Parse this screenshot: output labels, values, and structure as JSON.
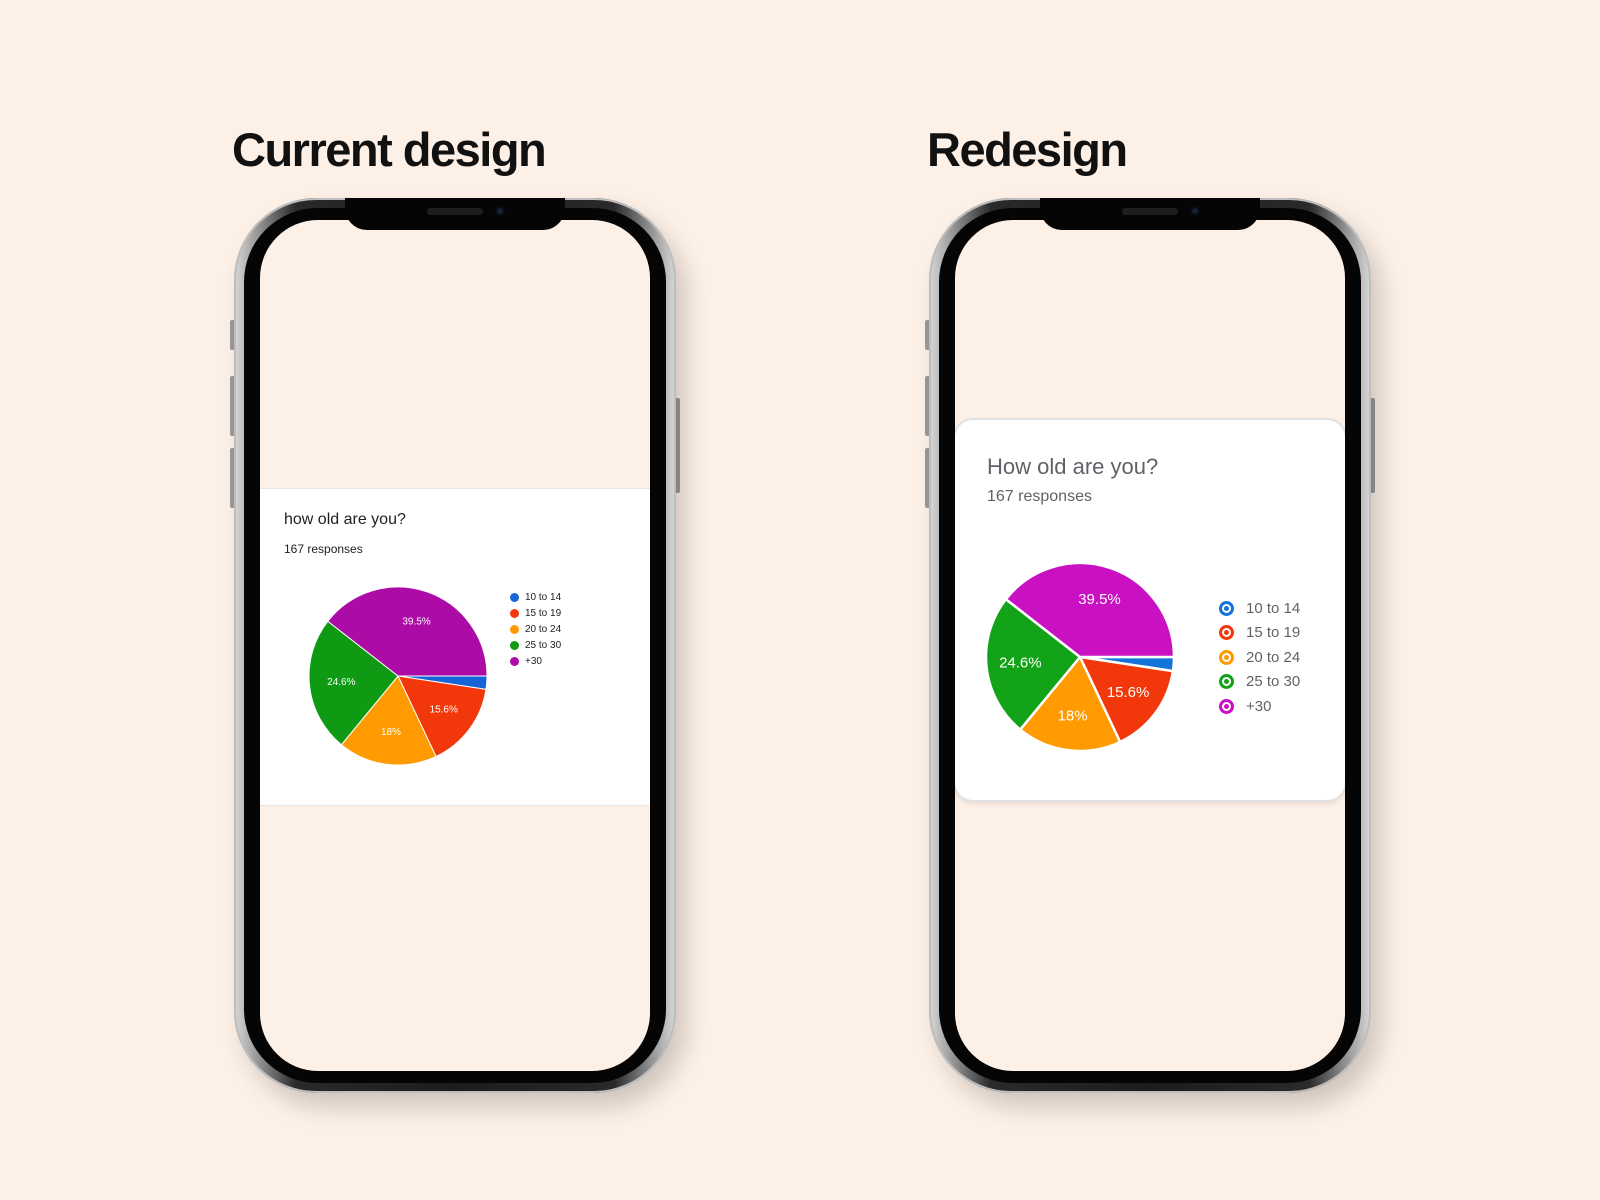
{
  "headings": {
    "current": "Current design",
    "redesign": "Redesign"
  },
  "current_card": {
    "title": "how old are you?",
    "subtitle": "167 responses"
  },
  "redesign_card": {
    "title": "How old are you?",
    "subtitle": "167 responses"
  },
  "chart_data": [
    {
      "type": "pie",
      "variant": "current",
      "categories": [
        "10 to 14",
        "15 to 19",
        "20 to 24",
        "25 to 30",
        "+30"
      ],
      "values": [
        2.4,
        15.6,
        18,
        24.6,
        39.5
      ],
      "data_labels": [
        "",
        "15.6%",
        "18%",
        "24.6%",
        "39.5%"
      ],
      "colors": [
        "#1565d8",
        "#f2380b",
        "#ff9b00",
        "#0f9a13",
        "#ad0ba6"
      ],
      "legend": "right",
      "title": "how old are you?",
      "subtitle": "167 responses"
    },
    {
      "type": "pie",
      "variant": "redesign",
      "categories": [
        "10 to 14",
        "15 to 19",
        "20 to 24",
        "25 to 30",
        "+30"
      ],
      "values": [
        2.4,
        15.6,
        18,
        24.6,
        39.5
      ],
      "data_labels": [
        "",
        "15.6%",
        "18%",
        "24.6%",
        "39.5%"
      ],
      "colors": [
        "#1373d8",
        "#f2380b",
        "#ff9b00",
        "#12a318",
        "#c910c2"
      ],
      "legend": "right",
      "title": "How old are you?",
      "subtitle": "167 responses"
    }
  ]
}
